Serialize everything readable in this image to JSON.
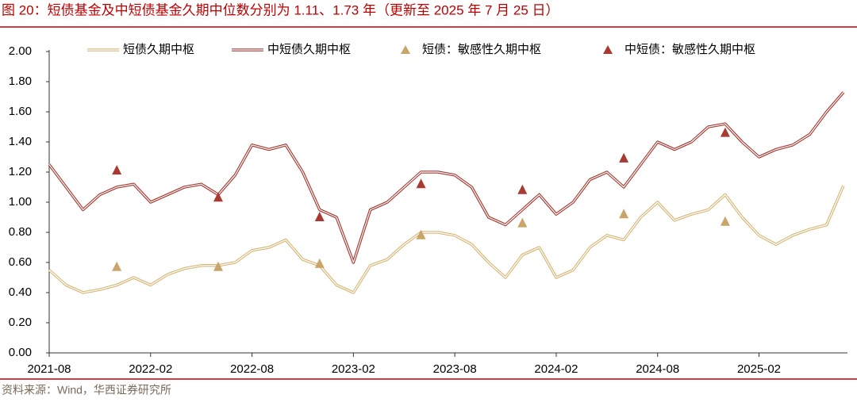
{
  "chart_data": {
    "type": "line",
    "title": "图 20：短债基金及中短债基金久期中位数分别为 1.11、1.73 年（更新至 2025 年 7 月 25 日）",
    "source": "资料来源：Wind，华西证券研究所",
    "x": [
      "2021-08",
      "2021-09",
      "2021-10",
      "2021-11",
      "2021-12",
      "2022-01",
      "2022-02",
      "2022-03",
      "2022-04",
      "2022-05",
      "2022-06",
      "2022-07",
      "2022-08",
      "2022-09",
      "2022-10",
      "2022-11",
      "2022-12",
      "2023-01",
      "2023-02",
      "2023-03",
      "2023-04",
      "2023-05",
      "2023-06",
      "2023-07",
      "2023-08",
      "2023-09",
      "2023-10",
      "2023-11",
      "2023-12",
      "2024-01",
      "2024-02",
      "2024-03",
      "2024-04",
      "2024-05",
      "2024-06",
      "2024-07",
      "2024-08",
      "2024-09",
      "2024-10",
      "2024-11",
      "2024-12",
      "2025-01",
      "2025-02",
      "2025-03",
      "2025-04",
      "2025-05",
      "2025-06",
      "2025-07"
    ],
    "xlim": [
      "2021-08",
      "2025-07"
    ],
    "xticks": [
      "2021-08",
      "2022-02",
      "2022-08",
      "2023-02",
      "2023-08",
      "2024-02",
      "2024-08",
      "2025-02"
    ],
    "ylim": [
      0,
      2
    ],
    "yticks": [
      {
        "value": 0,
        "label": "0.00"
      },
      {
        "value": 0.2,
        "label": "0.20"
      },
      {
        "value": 0.4,
        "label": "0.40"
      },
      {
        "value": 0.6,
        "label": "0.60"
      },
      {
        "value": 0.8,
        "label": "0.80"
      },
      {
        "value": 1,
        "label": "1.00"
      },
      {
        "value": 1.2,
        "label": "1.20"
      },
      {
        "value": 1.4,
        "label": "1.40"
      },
      {
        "value": 1.6,
        "label": "1.60"
      },
      {
        "value": 1.8,
        "label": "1.80"
      },
      {
        "value": 2,
        "label": "2.00"
      }
    ],
    "series": [
      {
        "name": "短债久期中枢",
        "kind": "line",
        "color": "#d8b878",
        "values": [
          0.55,
          0.45,
          0.4,
          0.42,
          0.45,
          0.5,
          0.45,
          0.52,
          0.56,
          0.58,
          0.58,
          0.6,
          0.68,
          0.7,
          0.75,
          0.62,
          0.58,
          0.45,
          0.4,
          0.58,
          0.62,
          0.72,
          0.8,
          0.8,
          0.78,
          0.72,
          0.6,
          0.5,
          0.65,
          0.7,
          0.5,
          0.55,
          0.7,
          0.78,
          0.75,
          0.9,
          1.0,
          0.88,
          0.92,
          0.95,
          1.05,
          0.9,
          0.78,
          0.72,
          0.78,
          0.82,
          0.85,
          1.11
        ]
      },
      {
        "name": "中短债久期中枢",
        "kind": "line",
        "color": "#a83a32",
        "values": [
          1.25,
          1.1,
          0.95,
          1.05,
          1.1,
          1.12,
          1.0,
          1.05,
          1.1,
          1.12,
          1.05,
          1.18,
          1.38,
          1.35,
          1.38,
          1.2,
          0.95,
          0.9,
          0.6,
          0.95,
          1.0,
          1.1,
          1.2,
          1.2,
          1.18,
          1.1,
          0.9,
          0.85,
          0.95,
          1.05,
          0.92,
          1.0,
          1.15,
          1.2,
          1.1,
          1.25,
          1.4,
          1.35,
          1.4,
          1.5,
          1.52,
          1.4,
          1.3,
          1.35,
          1.38,
          1.45,
          1.6,
          1.73
        ]
      },
      {
        "name": "短债：敏感性久期中枢",
        "kind": "scatter",
        "color": "#c9a56a",
        "x": [
          "2021-12",
          "2022-06",
          "2022-12",
          "2023-06",
          "2023-12",
          "2024-06",
          "2024-12"
        ],
        "values": [
          0.57,
          0.57,
          0.59,
          0.78,
          0.86,
          0.92,
          0.87
        ]
      },
      {
        "name": "中短债：敏感性久期中枢",
        "kind": "scatter",
        "color": "#a83a32",
        "x": [
          "2021-12",
          "2022-06",
          "2022-12",
          "2023-06",
          "2023-12",
          "2024-06",
          "2024-12"
        ],
        "values": [
          1.21,
          1.03,
          0.9,
          1.12,
          1.08,
          1.29,
          1.46
        ]
      }
    ]
  }
}
